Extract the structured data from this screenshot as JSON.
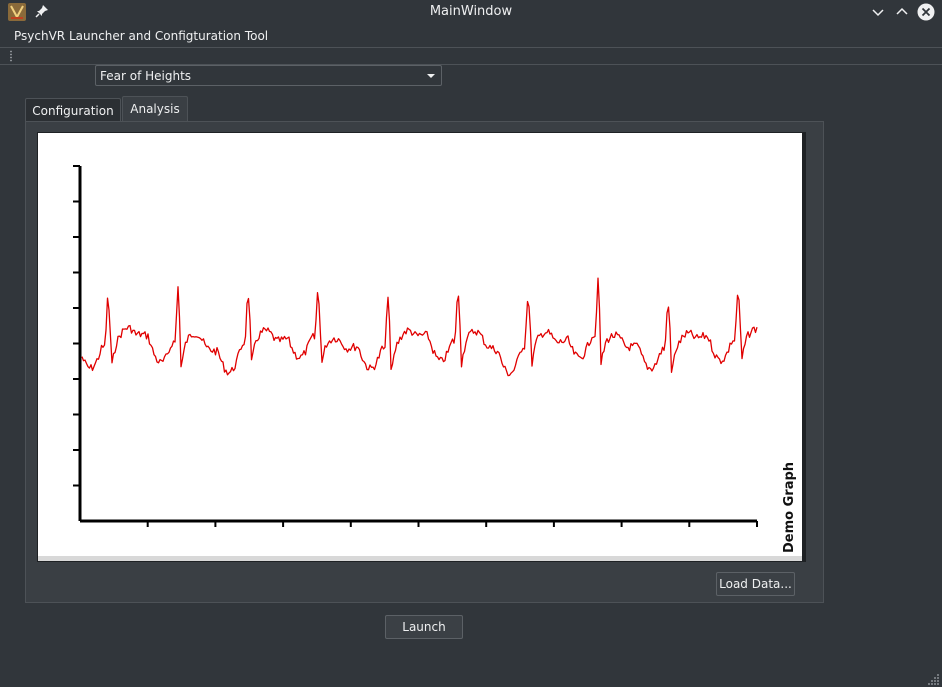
{
  "window": {
    "title": "MainWindow"
  },
  "menu": {
    "items": [
      {
        "label": "PsychVR Launcher and Configturation Tool"
      }
    ]
  },
  "scenario": {
    "selected": "Fear of Heights"
  },
  "tabs": [
    {
      "label": "Configuration"
    },
    {
      "label": "Analysis"
    }
  ],
  "active_tab": "Analysis",
  "chart_data": {
    "type": "line",
    "title": "",
    "rotated_label": "Demo Graph",
    "xlabel": "",
    "ylabel": "",
    "x_ticks": 10,
    "y_ticks": 10,
    "series": [
      {
        "color": "#e00000",
        "waveform": "ecg-like signal, ~10 peaks, baseline around 5 of 10 y-divisions"
      }
    ]
  },
  "buttons": {
    "load_data": "Load Data...",
    "launch": "Launch"
  },
  "colors": {
    "background": "#31363b",
    "signal": "#e00000",
    "plot_bg": "#ffffff"
  }
}
